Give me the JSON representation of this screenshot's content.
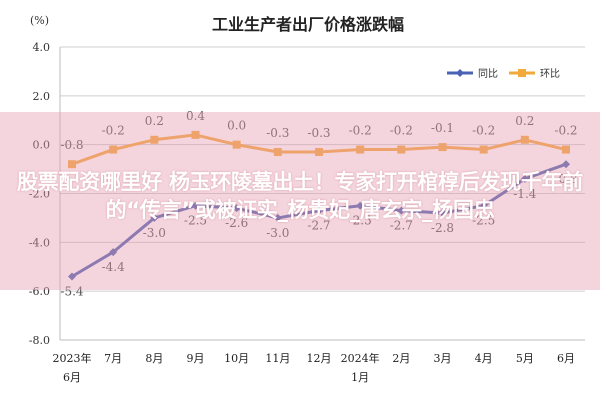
{
  "banner": {
    "text": "股票配资哪里好 杨玉环陵墓出土！专家打开棺椁后发现千年前的“传言”或被证实_杨贵妃_唐玄宗_杨国忠"
  },
  "chart_data": {
    "type": "line",
    "title": "工业生产者出厂价格涨跌幅",
    "unit_label": "(%)",
    "categories": [
      "2023年\n6月",
      "7月",
      "8月",
      "9月",
      "10月",
      "11月",
      "12月",
      "2024年\n1月",
      "2月",
      "3月",
      "4月",
      "5月",
      "6月"
    ],
    "ylim": [
      -8.0,
      4.0
    ],
    "yticks": [
      "4.0",
      "2.0",
      "0.0",
      "-2.0",
      "-4.0",
      "-6.0",
      "-8.0"
    ],
    "grid": true,
    "legend_position": "top-right",
    "series": [
      {
        "name": "同比",
        "color": "#4a63b4",
        "values": [
          -5.4,
          -4.4,
          -3.0,
          -2.5,
          -2.6,
          -3.0,
          -2.7,
          -2.5,
          -2.7,
          -2.8,
          -2.5,
          -1.4,
          -0.8
        ],
        "labels": [
          "-5.4",
          "-4.4",
          "-3.0",
          "-2.5",
          "-2.6",
          "-3.0",
          "-2.7",
          "-2.5",
          "-2.7",
          "-2.8",
          "-2.5",
          "-1.4",
          "-0.8"
        ]
      },
      {
        "name": "环比",
        "color": "#f2a93b",
        "values": [
          -0.8,
          -0.2,
          0.2,
          0.4,
          0.0,
          -0.3,
          -0.3,
          -0.2,
          -0.2,
          -0.1,
          -0.2,
          0.2,
          -0.2
        ],
        "labels": [
          "-0.8",
          "-0.2",
          "0.2",
          "0.4",
          "0.0",
          "-0.3",
          "-0.3",
          "-0.2",
          "-0.2",
          "-0.1",
          "-0.2",
          "0.2",
          "-0.2"
        ]
      }
    ]
  }
}
